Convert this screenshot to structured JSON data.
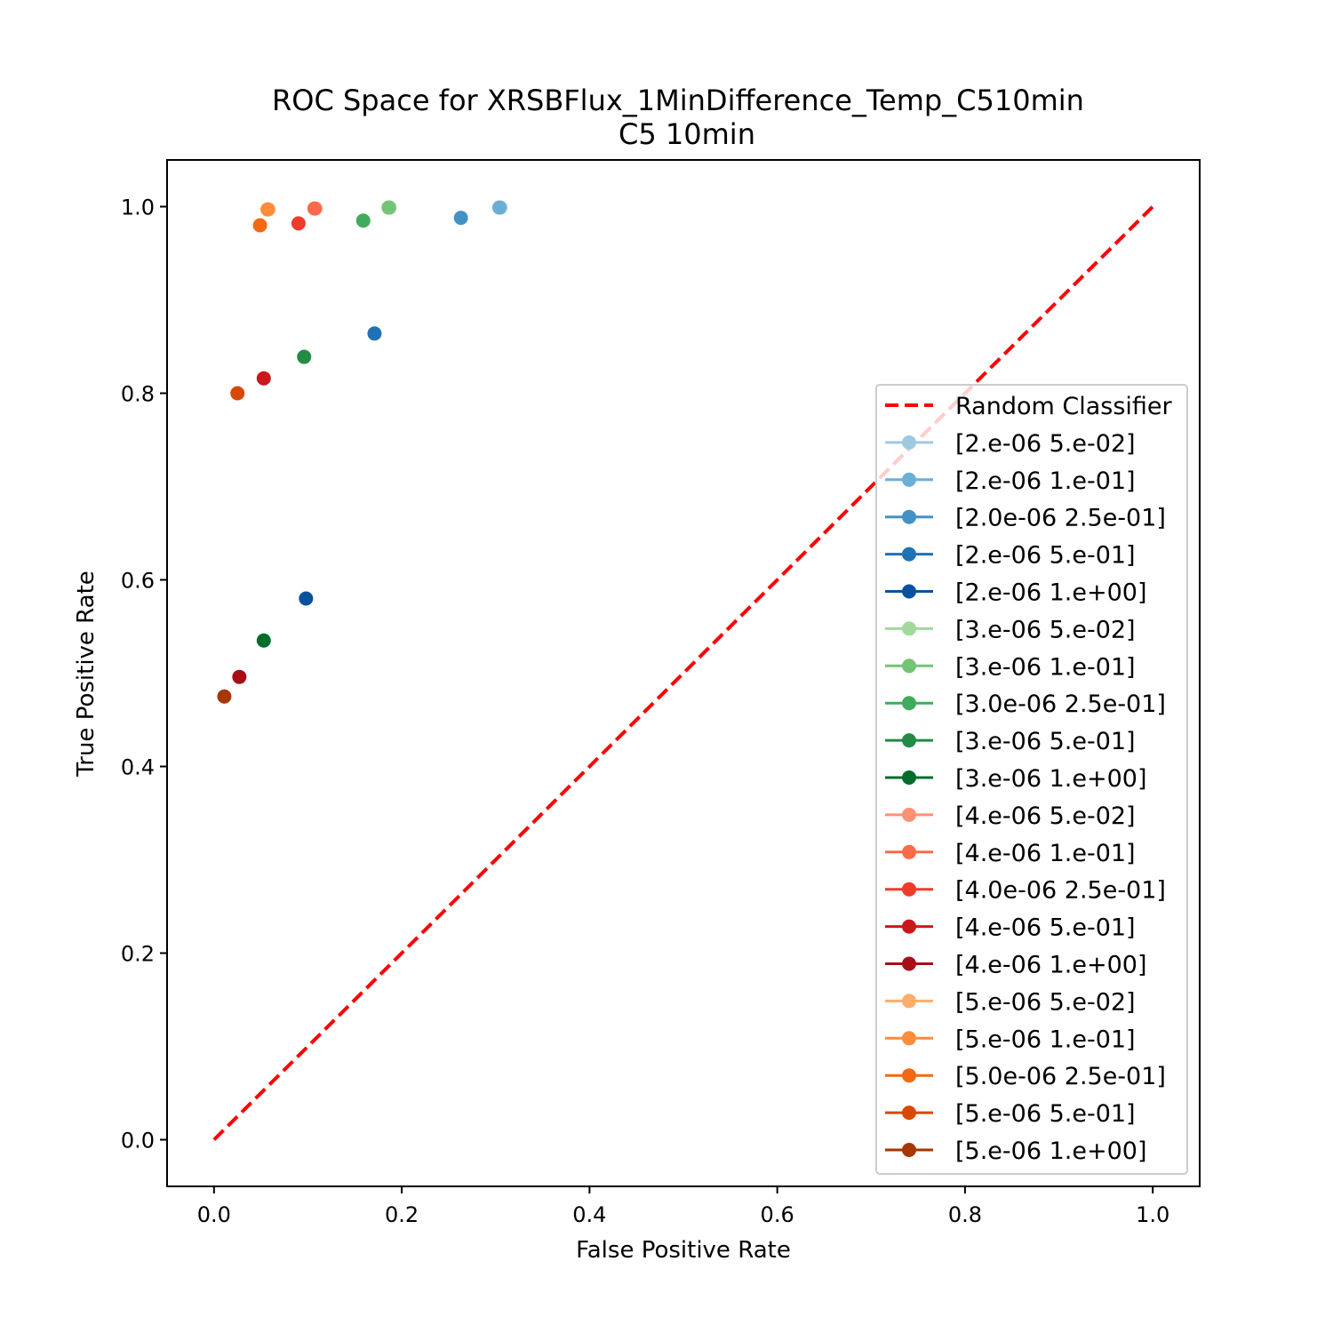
{
  "chart_data": {
    "type": "scatter",
    "title": "ROC Space for XRSBFlux_1MinDifference_Temp_C510min",
    "subtitle": "C5 10min",
    "xlabel": "False Positive Rate",
    "ylabel": "True Positive Rate",
    "xlim": [
      -0.05,
      1.05
    ],
    "ylim": [
      -0.05,
      1.05
    ],
    "xticks": [
      0.0,
      0.2,
      0.4,
      0.6,
      0.8,
      1.0
    ],
    "yticks": [
      0.0,
      0.2,
      0.4,
      0.6,
      0.8,
      1.0
    ],
    "xtick_labels": [
      "0.0",
      "0.2",
      "0.4",
      "0.6",
      "0.8",
      "1.0"
    ],
    "ytick_labels": [
      "0.0",
      "0.2",
      "0.4",
      "0.6",
      "0.8",
      "1.0"
    ],
    "grid": false,
    "legend_position": "center-right",
    "reference_line": {
      "name": "Random Classifier",
      "color": "#ff0000",
      "style": "dashed",
      "x": [
        0,
        1
      ],
      "y": [
        0,
        1
      ]
    },
    "series": [
      {
        "name": "[2.e-06 5.e-02]",
        "color": "#9ecae1",
        "x": 0.305,
        "y": 0.999
      },
      {
        "name": "[2.e-06 1.e-01]",
        "color": "#6baed6",
        "x": 0.304,
        "y": 0.999
      },
      {
        "name": "[2.0e-06 2.5e-01]",
        "color": "#4292c6",
        "x": 0.263,
        "y": 0.988
      },
      {
        "name": "[2.e-06 5.e-01]",
        "color": "#2171b5",
        "x": 0.171,
        "y": 0.864
      },
      {
        "name": "[2.e-06 1.e+00]",
        "color": "#08519c",
        "x": 0.098,
        "y": 0.58
      },
      {
        "name": "[3.e-06 5.e-02]",
        "color": "#a1d99b",
        "x": 0.187,
        "y": 0.999
      },
      {
        "name": "[3.e-06 1.e-01]",
        "color": "#74c476",
        "x": 0.186,
        "y": 0.999
      },
      {
        "name": "[3.0e-06 2.5e-01]",
        "color": "#41ab5d",
        "x": 0.159,
        "y": 0.985
      },
      {
        "name": "[3.e-06 5.e-01]",
        "color": "#238b45",
        "x": 0.096,
        "y": 0.839
      },
      {
        "name": "[3.e-06 1.e+00]",
        "color": "#006d2c",
        "x": 0.053,
        "y": 0.535
      },
      {
        "name": "[4.e-06 5.e-02]",
        "color": "#fc9272",
        "x": 0.108,
        "y": 0.998
      },
      {
        "name": "[4.e-06 1.e-01]",
        "color": "#fb6a4a",
        "x": 0.107,
        "y": 0.998
      },
      {
        "name": "[4.0e-06 2.5e-01]",
        "color": "#ef3b2c",
        "x": 0.09,
        "y": 0.982
      },
      {
        "name": "[4.e-06 5.e-01]",
        "color": "#cb181d",
        "x": 0.053,
        "y": 0.816
      },
      {
        "name": "[4.e-06 1.e+00]",
        "color": "#a50f15",
        "x": 0.027,
        "y": 0.496
      },
      {
        "name": "[5.e-06 5.e-02]",
        "color": "#fdae6b",
        "x": 0.058,
        "y": 0.997
      },
      {
        "name": "[5.e-06 1.e-01]",
        "color": "#fd8d3c",
        "x": 0.057,
        "y": 0.997
      },
      {
        "name": "[5.0e-06 2.5e-01]",
        "color": "#f16913",
        "x": 0.049,
        "y": 0.98
      },
      {
        "name": "[5.e-06 5.e-01]",
        "color": "#d94801",
        "x": 0.025,
        "y": 0.8
      },
      {
        "name": "[5.e-06 1.e+00]",
        "color": "#a63603",
        "x": 0.011,
        "y": 0.475
      }
    ]
  }
}
